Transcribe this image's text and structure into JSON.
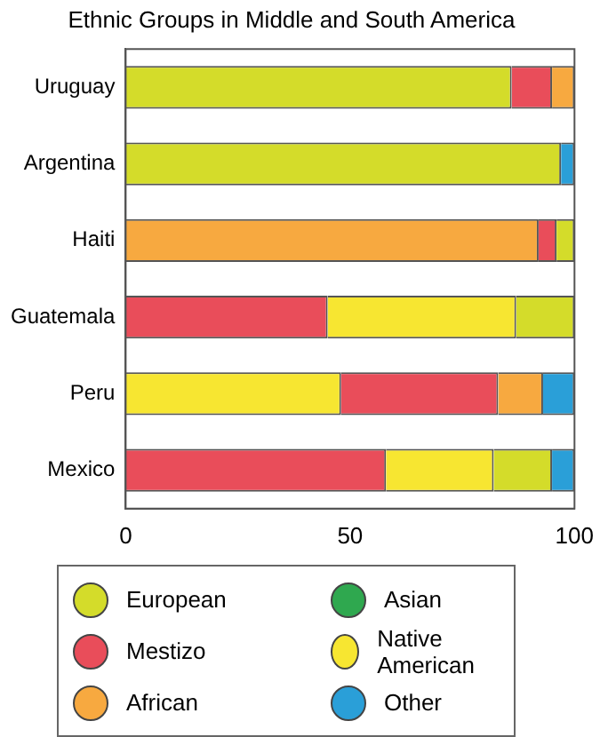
{
  "chart_data": {
    "type": "bar",
    "title": "Ethnic Groups in Middle and South America",
    "orientation": "horizontal",
    "categories": [
      "Uruguay",
      "Argentina",
      "Haiti",
      "Guatemala",
      "Peru",
      "Mexico"
    ],
    "series": [
      {
        "name": "European",
        "color": "#d4dc2a",
        "base": [
          0,
          0,
          96,
          87,
          null,
          82
        ],
        "values": [
          86,
          97,
          4,
          13,
          null,
          13
        ]
      },
      {
        "name": "Mestizo",
        "color": "#e94d5a",
        "base": [
          86,
          null,
          92,
          0,
          48,
          0
        ],
        "values": [
          9,
          null,
          4,
          45,
          35,
          58
        ]
      },
      {
        "name": "African",
        "color": "#f7a940",
        "base": [
          95,
          null,
          0,
          null,
          83,
          null
        ],
        "values": [
          5,
          null,
          92,
          null,
          10,
          null
        ]
      },
      {
        "name": "Asian",
        "color": "#2fa84f",
        "base": [
          null,
          null,
          null,
          null,
          null,
          null
        ],
        "values": [
          null,
          null,
          null,
          null,
          null,
          null
        ]
      },
      {
        "name": "Native American",
        "color": "#f7e631",
        "base": [
          null,
          null,
          null,
          45,
          0,
          58
        ],
        "values": [
          null,
          null,
          null,
          42,
          48,
          24
        ]
      },
      {
        "name": "Other",
        "color": "#2a9fd8",
        "base": [
          null,
          97,
          null,
          null,
          93,
          95
        ],
        "values": [
          null,
          3,
          null,
          null,
          7,
          5
        ]
      }
    ],
    "xlim": [
      0,
      100
    ],
    "xticks": [
      0,
      50,
      100
    ],
    "grid": false,
    "legend": "bottom"
  }
}
